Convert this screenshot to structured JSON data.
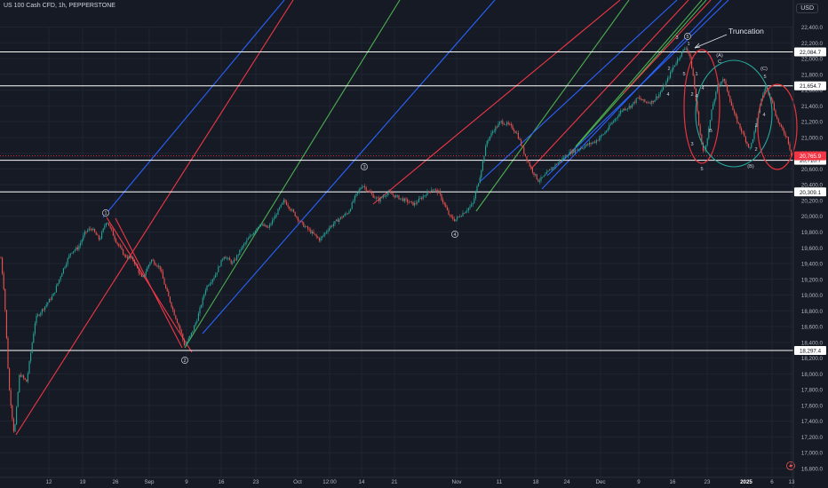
{
  "chart_title": "US 100 Cash CFD, 1h, PEPPERSTONE",
  "currency": "USD",
  "colors": {
    "background": "#161a25",
    "up": "#26a69a",
    "down": "#ef5350",
    "channel_blue": "#2962ff",
    "channel_green": "#4caf50",
    "channel_red": "#f23645",
    "horizontal": "#ffffff",
    "current_price": "#f23645",
    "ellipse_red": "#e8323b",
    "ellipse_green": "#26a69a"
  },
  "chart_data": {
    "type": "candlestick",
    "price_axis_ticks": [
      "22,400.0",
      "22,200.0",
      "22,000.0",
      "21,800.0",
      "21,600.0",
      "21,400.0",
      "21,200.0",
      "21,000.0",
      "20,800.0",
      "20,600.0",
      "20,400.0",
      "20,200.0",
      "20,000.0",
      "19,800.0",
      "19,600.0",
      "19,400.0",
      "19,200.0",
      "19,000.0",
      "18,800.0",
      "18,600.0",
      "18,400.0",
      "18,200.0",
      "18,000.0",
      "17,800.0",
      "17,600.0",
      "17,400.0",
      "17,200.0",
      "17,000.0",
      "16,800.0"
    ],
    "time_axis_ticks": [
      "12",
      "19",
      "26",
      "Sep",
      "9",
      "16",
      "23",
      "Oct",
      "12:00",
      "14",
      "21",
      "Nov",
      "11",
      "18",
      "24",
      "Dec",
      "9",
      "16",
      "23",
      "2025",
      "6",
      "13"
    ],
    "ylim": [
      16750,
      22600
    ],
    "price_path": [
      [
        0,
        19590
      ],
      [
        5,
        19000
      ],
      [
        10,
        17850
      ],
      [
        16,
        17220
      ],
      [
        22,
        18000
      ],
      [
        30,
        17900
      ],
      [
        35,
        18300
      ],
      [
        40,
        18700
      ],
      [
        50,
        18850
      ],
      [
        60,
        19000
      ],
      [
        70,
        19300
      ],
      [
        80,
        19550
      ],
      [
        88,
        19600
      ],
      [
        96,
        19800
      ],
      [
        103,
        19850
      ],
      [
        112,
        19700
      ],
      [
        120,
        19950
      ],
      [
        130,
        19700
      ],
      [
        140,
        19500
      ],
      [
        150,
        19450
      ],
      [
        160,
        19200
      ],
      [
        170,
        19450
      ],
      [
        180,
        19350
      ],
      [
        186,
        19100
      ],
      [
        195,
        18800
      ],
      [
        203,
        18550
      ],
      [
        208,
        18350
      ],
      [
        215,
        18500
      ],
      [
        222,
        18700
      ],
      [
        232,
        19100
      ],
      [
        242,
        19250
      ],
      [
        252,
        19500
      ],
      [
        262,
        19400
      ],
      [
        272,
        19600
      ],
      [
        282,
        19750
      ],
      [
        292,
        19900
      ],
      [
        302,
        19850
      ],
      [
        312,
        20050
      ],
      [
        320,
        20200
      ],
      [
        330,
        20050
      ],
      [
        340,
        19900
      ],
      [
        350,
        19800
      ],
      [
        360,
        19700
      ],
      [
        370,
        19850
      ],
      [
        380,
        19950
      ],
      [
        392,
        20050
      ],
      [
        400,
        20250
      ],
      [
        408,
        20400
      ],
      [
        416,
        20300
      ],
      [
        426,
        20200
      ],
      [
        436,
        20300
      ],
      [
        446,
        20250
      ],
      [
        456,
        20200
      ],
      [
        466,
        20150
      ],
      [
        476,
        20250
      ],
      [
        486,
        20350
      ],
      [
        494,
        20300
      ],
      [
        500,
        20150
      ],
      [
        506,
        20000
      ],
      [
        512,
        19950
      ],
      [
        522,
        20050
      ],
      [
        532,
        20150
      ],
      [
        540,
        20500
      ],
      [
        548,
        20950
      ],
      [
        556,
        21100
      ],
      [
        564,
        21200
      ],
      [
        574,
        21150
      ],
      [
        582,
        21050
      ],
      [
        590,
        20800
      ],
      [
        598,
        20600
      ],
      [
        606,
        20450
      ],
      [
        612,
        20500
      ],
      [
        620,
        20600
      ],
      [
        630,
        20700
      ],
      [
        640,
        20800
      ],
      [
        650,
        20850
      ],
      [
        660,
        20900
      ],
      [
        670,
        20950
      ],
      [
        680,
        21050
      ],
      [
        690,
        21200
      ],
      [
        700,
        21350
      ],
      [
        710,
        21400
      ],
      [
        718,
        21500
      ],
      [
        726,
        21450
      ],
      [
        734,
        21450
      ],
      [
        742,
        21550
      ],
      [
        750,
        21700
      ],
      [
        758,
        21900
      ],
      [
        766,
        22050
      ],
      [
        772,
        22150
      ],
      [
        776,
        22050
      ],
      [
        780,
        21800
      ],
      [
        784,
        21400
      ],
      [
        788,
        21050
      ],
      [
        792,
        20780
      ],
      [
        797,
        21050
      ],
      [
        802,
        21400
      ],
      [
        808,
        21650
      ],
      [
        814,
        21750
      ],
      [
        820,
        21550
      ],
      [
        826,
        21300
      ],
      [
        832,
        21150
      ],
      [
        838,
        21000
      ],
      [
        844,
        20850
      ],
      [
        850,
        21100
      ],
      [
        856,
        21450
      ],
      [
        862,
        21650
      ],
      [
        868,
        21500
      ],
      [
        874,
        21250
      ],
      [
        880,
        21100
      ],
      [
        886,
        21000
      ],
      [
        891,
        20766
      ]
    ],
    "horizontal_levels": [
      {
        "label": "22,084.7",
        "value": 22084.7
      },
      {
        "label": "21,654.7",
        "value": 21654.7
      },
      {
        "label": "20,710.7",
        "value": 20710.7
      },
      {
        "label": "20,309.1",
        "value": 20309.1
      },
      {
        "label": "18,297.4",
        "value": 18297.4
      }
    ],
    "current_price": {
      "label": "20,765.9",
      "value": 20765.9
    },
    "wave_labels_circled": [
      "1",
      "2",
      "3",
      "4",
      "5"
    ],
    "wave_labels": [
      "3",
      "1",
      "2",
      "4",
      "1",
      "2",
      "3",
      "4",
      "B",
      "5",
      "(A)",
      "C",
      "(B)",
      "(C)",
      "5",
      "4",
      "1",
      "2",
      "4",
      "5"
    ],
    "annotations": [
      "Truncation"
    ],
    "time_marker": "2025"
  }
}
